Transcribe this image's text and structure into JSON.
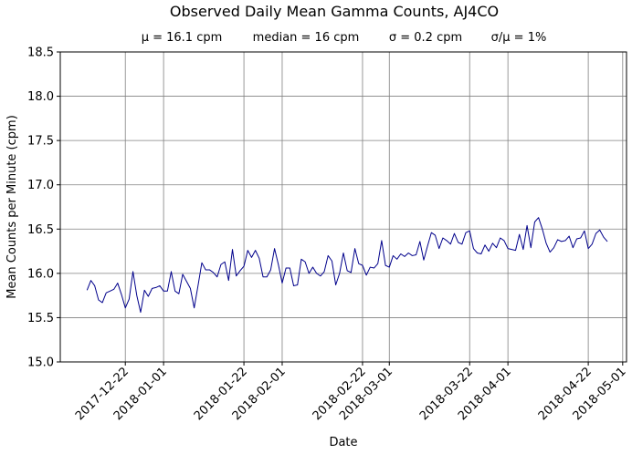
{
  "chart_data": {
    "type": "line",
    "title": "Observed Daily Mean Gamma Counts, AJ4CO",
    "subtitle": {
      "mean": "μ = 16.1 cpm",
      "median": "median = 16 cpm",
      "sigma": "σ = 0.2 cpm",
      "cv": "σ/μ = 1%"
    },
    "xlabel": "Date",
    "ylabel": "Mean Counts per Minute (cpm)",
    "xlim": [
      "2017-12-05",
      "2018-05-02"
    ],
    "ylim": [
      15.0,
      18.5
    ],
    "x_ticks": [
      "2017-12-22",
      "2018-01-01",
      "2018-01-22",
      "2018-02-01",
      "2018-02-22",
      "2018-03-01",
      "2018-03-22",
      "2018-04-01",
      "2018-04-22",
      "2018-05-01"
    ],
    "y_ticks": [
      "15.0",
      "15.5",
      "16.0",
      "16.5",
      "17.0",
      "17.5",
      "18.0",
      "18.5"
    ],
    "grid": true,
    "line_color": "#00008b",
    "series": [
      {
        "start_date": "2017-12-12",
        "values": [
          15.81,
          15.92,
          15.86,
          15.7,
          15.67,
          15.78,
          15.8,
          15.82,
          15.89,
          15.76,
          15.61,
          15.71,
          16.02,
          15.75,
          15.56,
          15.81,
          15.74,
          15.83,
          15.84,
          15.86,
          15.8,
          15.8,
          16.02,
          15.8,
          15.77,
          15.99,
          15.91,
          15.83,
          15.61,
          15.86,
          16.12,
          16.04,
          16.04,
          16.01,
          15.96,
          16.1,
          16.13,
          15.92,
          16.27,
          15.97,
          16.03,
          16.08,
          16.26,
          16.18,
          16.26,
          16.17,
          15.96,
          15.96,
          16.04,
          16.28,
          16.1,
          15.89,
          16.06,
          16.06,
          15.86,
          15.87,
          16.16,
          16.13,
          16.0,
          16.07,
          16.0,
          15.97,
          16.02,
          16.2,
          16.14,
          15.87,
          16.0,
          16.23,
          16.03,
          16.01,
          16.28,
          16.11,
          16.09,
          15.98,
          16.07,
          16.06,
          16.11,
          16.37,
          16.09,
          16.07,
          16.2,
          16.16,
          16.22,
          16.19,
          16.23,
          16.2,
          16.21,
          16.36,
          16.15,
          16.31,
          16.46,
          16.43,
          16.28,
          16.4,
          16.37,
          16.33,
          16.45,
          16.35,
          16.33,
          16.46,
          16.48,
          16.28,
          16.23,
          16.22,
          16.32,
          16.25,
          16.34,
          16.29,
          16.4,
          16.37,
          16.28,
          16.27,
          16.26,
          16.44,
          16.27,
          16.54,
          16.29,
          16.58,
          16.63,
          16.5,
          16.34,
          16.24,
          16.29,
          16.38,
          16.36,
          16.37,
          16.42,
          16.29,
          16.39,
          16.4,
          16.48,
          16.28,
          16.33,
          16.45,
          16.49,
          16.41,
          16.36
        ]
      }
    ]
  }
}
